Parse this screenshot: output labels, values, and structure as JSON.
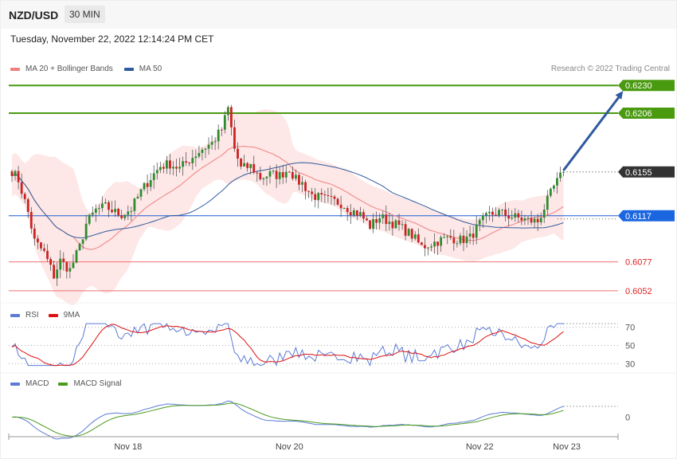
{
  "header": {
    "pair": "NZD/USD",
    "timeframe": "30 MIN"
  },
  "datetime": "Tuesday, November 22, 2022 12:14:24 PM CET",
  "legends": {
    "main": [
      {
        "label": "MA 20 + Bollinger Bands",
        "color": "#f08080"
      },
      {
        "label": "MA 50",
        "color": "#2f5b9e"
      }
    ],
    "rsi": [
      {
        "label": "RSI",
        "color": "#5b7bd5"
      },
      {
        "label": "9MA",
        "color": "#dd1111"
      }
    ],
    "macd": [
      {
        "label": "MACD",
        "color": "#5b7bd5"
      },
      {
        "label": "MACD Signal",
        "color": "#4a9a1e"
      }
    ]
  },
  "credit": "Research © 2022 Trading Central",
  "colors": {
    "up": "#2e8b2e",
    "down": "#cc2222",
    "green_level": "#4a9a10",
    "blue_level": "#1a5bd6",
    "current": "#333333",
    "red_level": "#f07070",
    "arrow": "#2f5b9e"
  },
  "chart_data": {
    "type": "candlestick",
    "symbol": "NZD/USD",
    "timeframe": "30 MIN",
    "y_range": [
      0.6045,
      0.6235
    ],
    "x_ticks": [
      {
        "label": "Nov 18",
        "index": 36
      },
      {
        "label": "Nov 20",
        "index": 86
      },
      {
        "label": "Nov 22",
        "index": 145
      },
      {
        "label": "Nov 23",
        "index": 172
      }
    ],
    "levels": [
      {
        "label": "0.6230",
        "value": 0.623,
        "kind": "resistance"
      },
      {
        "label": "0.6206",
        "value": 0.6206,
        "kind": "resistance"
      },
      {
        "label": "0.6155",
        "value": 0.6155,
        "kind": "current"
      },
      {
        "label": "0.6117",
        "value": 0.6117,
        "kind": "pivot"
      },
      {
        "label": "0.6077",
        "value": 0.6077,
        "kind": "support"
      },
      {
        "label": "0.6052",
        "value": 0.6052,
        "kind": "support"
      }
    ],
    "projection": {
      "from": {
        "index": 170,
        "value": 0.6155
      },
      "to": {
        "index": 186,
        "value": 0.6228
      }
    },
    "close_keypoints": [
      [
        0,
        0.6156
      ],
      [
        2,
        0.6148
      ],
      [
        5,
        0.612
      ],
      [
        7,
        0.6095
      ],
      [
        10,
        0.6085
      ],
      [
        13,
        0.6065
      ],
      [
        15,
        0.6078
      ],
      [
        18,
        0.607
      ],
      [
        21,
        0.609
      ],
      [
        23,
        0.611
      ],
      [
        26,
        0.6122
      ],
      [
        29,
        0.6125
      ],
      [
        32,
        0.612
      ],
      [
        34,
        0.6118
      ],
      [
        37,
        0.6123
      ],
      [
        40,
        0.6138
      ],
      [
        43,
        0.615
      ],
      [
        46,
        0.616
      ],
      [
        49,
        0.6162
      ],
      [
        52,
        0.6158
      ],
      [
        56,
        0.6168
      ],
      [
        59,
        0.6175
      ],
      [
        62,
        0.618
      ],
      [
        65,
        0.6192
      ],
      [
        67,
        0.621
      ],
      [
        69,
        0.6175
      ],
      [
        71,
        0.6158
      ],
      [
        74,
        0.616
      ],
      [
        77,
        0.615
      ],
      [
        80,
        0.6153
      ],
      [
        83,
        0.6152
      ],
      [
        86,
        0.6158
      ],
      [
        88,
        0.6148
      ],
      [
        90,
        0.6145
      ],
      [
        93,
        0.6135
      ],
      [
        96,
        0.6132
      ],
      [
        99,
        0.613
      ],
      [
        102,
        0.6128
      ],
      [
        105,
        0.6122
      ],
      [
        108,
        0.6118
      ],
      [
        111,
        0.6108
      ],
      [
        114,
        0.6116
      ],
      [
        117,
        0.6112
      ],
      [
        120,
        0.6108
      ],
      [
        124,
        0.61
      ],
      [
        127,
        0.609
      ],
      [
        130,
        0.6093
      ],
      [
        133,
        0.6096
      ],
      [
        136,
        0.6098
      ],
      [
        139,
        0.6096
      ],
      [
        142,
        0.6098
      ],
      [
        145,
        0.611
      ],
      [
        148,
        0.6118
      ],
      [
        151,
        0.612
      ],
      [
        154,
        0.6117
      ],
      [
        157,
        0.6115
      ],
      [
        160,
        0.6113
      ],
      [
        163,
        0.6112
      ],
      [
        165,
        0.6124
      ],
      [
        168,
        0.6142
      ],
      [
        171,
        0.6155
      ]
    ],
    "rsi": {
      "levels": [
        30,
        50,
        70
      ],
      "y_range": [
        25,
        75
      ]
    },
    "macd": {
      "levels": [
        0
      ]
    }
  }
}
